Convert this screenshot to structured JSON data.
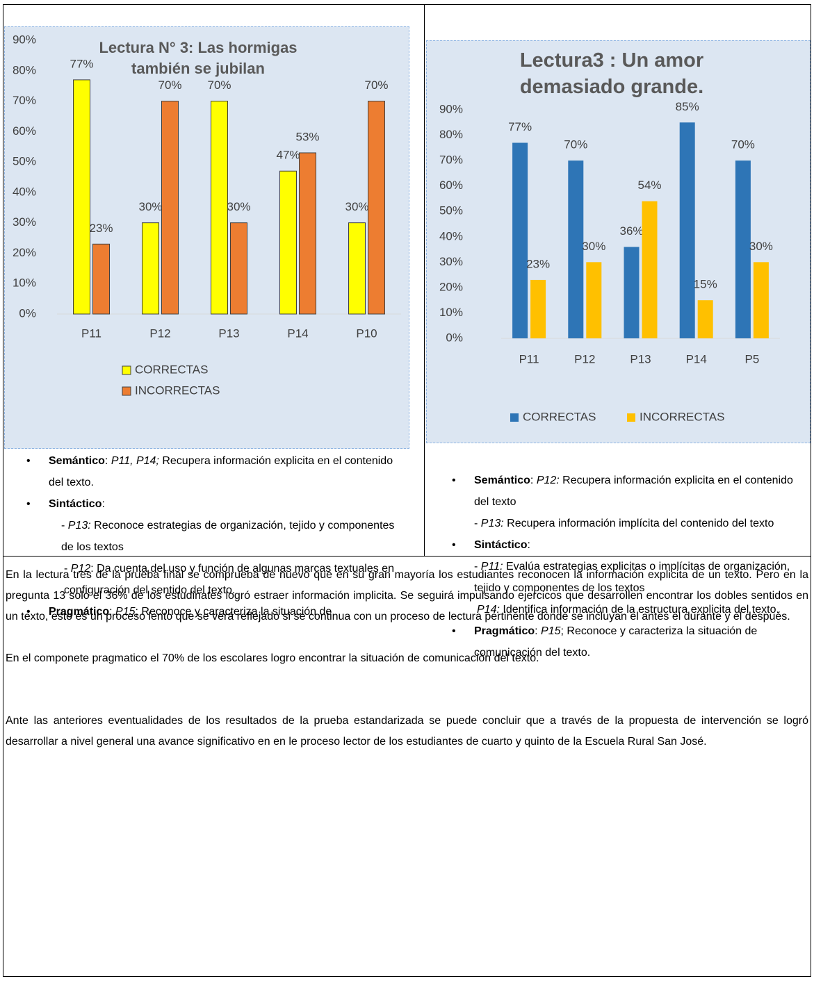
{
  "chart_data": [
    {
      "type": "bar",
      "title": "Lectura N° 3: Las hormigas también se jubilan",
      "categories": [
        "P11",
        "P12",
        "P13",
        "P14",
        "P10"
      ],
      "series": [
        {
          "name": "CORRECTAS",
          "color": "#ffff00",
          "values": [
            77,
            30,
            70,
            47,
            30
          ],
          "value_labels": [
            "77%",
            "30%",
            "70%",
            "47%",
            "30%"
          ]
        },
        {
          "name": "INCORRECTAS",
          "color": "#ed7d31",
          "values": [
            23,
            70,
            30,
            53,
            70
          ],
          "value_labels": [
            "23%",
            "70%",
            "30%",
            "53%",
            "70%"
          ]
        }
      ],
      "ylim": [
        0,
        90
      ],
      "yticks": [
        {
          "value": 0,
          "label": "0%"
        },
        {
          "value": 10,
          "label": "10%"
        },
        {
          "value": 20,
          "label": "20%"
        },
        {
          "value": 30,
          "label": "30%"
        },
        {
          "value": 40,
          "label": "40%"
        },
        {
          "value": 50,
          "label": "50%"
        },
        {
          "value": 60,
          "label": "60%"
        },
        {
          "value": 70,
          "label": "70%"
        },
        {
          "value": 80,
          "label": "80%"
        },
        {
          "value": 90,
          "label": "90%"
        }
      ],
      "grid": false,
      "legend": "bottom"
    },
    {
      "type": "bar",
      "title": "Lectura3 : Un amor demasiado grande.",
      "categories": [
        "P11",
        "P12",
        "P13",
        "P14",
        "P5"
      ],
      "series": [
        {
          "name": "CORRECTAS",
          "color": "#2e75b6",
          "values": [
            77,
            70,
            36,
            85,
            70
          ],
          "value_labels": [
            "77%",
            "70%",
            "36%",
            "85%",
            "70%"
          ]
        },
        {
          "name": "INCORRECTAS",
          "color": "#ffc000",
          "values": [
            23,
            30,
            54,
            15,
            30
          ],
          "value_labels": [
            "23%",
            "30%",
            "54%",
            "15%",
            "30%"
          ]
        }
      ],
      "ylim": [
        0,
        90
      ],
      "yticks": [
        {
          "value": 0,
          "label": "0%"
        },
        {
          "value": 10,
          "label": "10%"
        },
        {
          "value": 20,
          "label": "20%"
        },
        {
          "value": 30,
          "label": "30%"
        },
        {
          "value": 40,
          "label": "40%"
        },
        {
          "value": 50,
          "label": "50%"
        },
        {
          "value": 60,
          "label": "60%"
        },
        {
          "value": 70,
          "label": "70%"
        },
        {
          "value": 80,
          "label": "80%"
        },
        {
          "value": 90,
          "label": "90%"
        }
      ],
      "grid": false,
      "legend": "bottom"
    }
  ],
  "left_notes": [
    [
      "Semántico",
      ": ",
      "P11, P14;",
      " Recupera información explicita en el contenido del texto."
    ],
    [
      "Sintáctico",
      ":"
    ],
    [
      "- ",
      "P13:",
      " Reconoce estrategias de organización, tejido y componentes de los textos"
    ],
    [
      "- ",
      "P12",
      ": Da cuenta del uso y función de algunas marcas textuales en configuración del sentido del texto."
    ],
    [
      "Pragmático",
      ": ",
      "P15",
      "; Reconoce y caracteriza la situación de"
    ]
  ],
  "right_notes": [
    [
      "Semántico",
      ": ",
      "P12:",
      " Recupera información explicita en el contenido del texto"
    ],
    [
      "- ",
      "P13:",
      " Recupera información implícita del contenido del texto"
    ],
    [
      "Sintáctico",
      ":"
    ],
    [
      "- ",
      "P11:",
      " Evalúa estrategias explicitas o implícitas de organización, tejido y componentes de los textos"
    ],
    [
      "P14:",
      " Identifica información de la estructura explicita del texto."
    ],
    [
      "Pragmático",
      ": ",
      "P15",
      "; Reconoce y caracteriza la situación de comunicación del texto."
    ]
  ],
  "paragraphs": [
    "En la lectura tres de la prueba final se comprueba de nuevo que en su gran mayoría los estudiantes reconocen la información explicita de un texto. Pero en la pregunta 13 solo el 36%  de los estudinates logró estraer información implicita. Se seguirá impulsando ejercicos que desarrollen encontrar los dobles sentidos en un texto, esto es un proceso lento que se verá reflejado si se continua con un proceso de lectura pertinente donde se incluyan el antes el durante y el después.",
    "En el componete pragmatico el 70% de los escolares logro encontrar la situación de comunicación del texto.",
    "Ante las anteriores eventualidades de los resultados de la prueba estandarizada se puede concluir que a través de la propuesta de intervención se logró desarrollar a nivel general una avance significativo en en le proceso lector de los estudiantes de cuarto y quinto de la Escuela Rural San José."
  ]
}
